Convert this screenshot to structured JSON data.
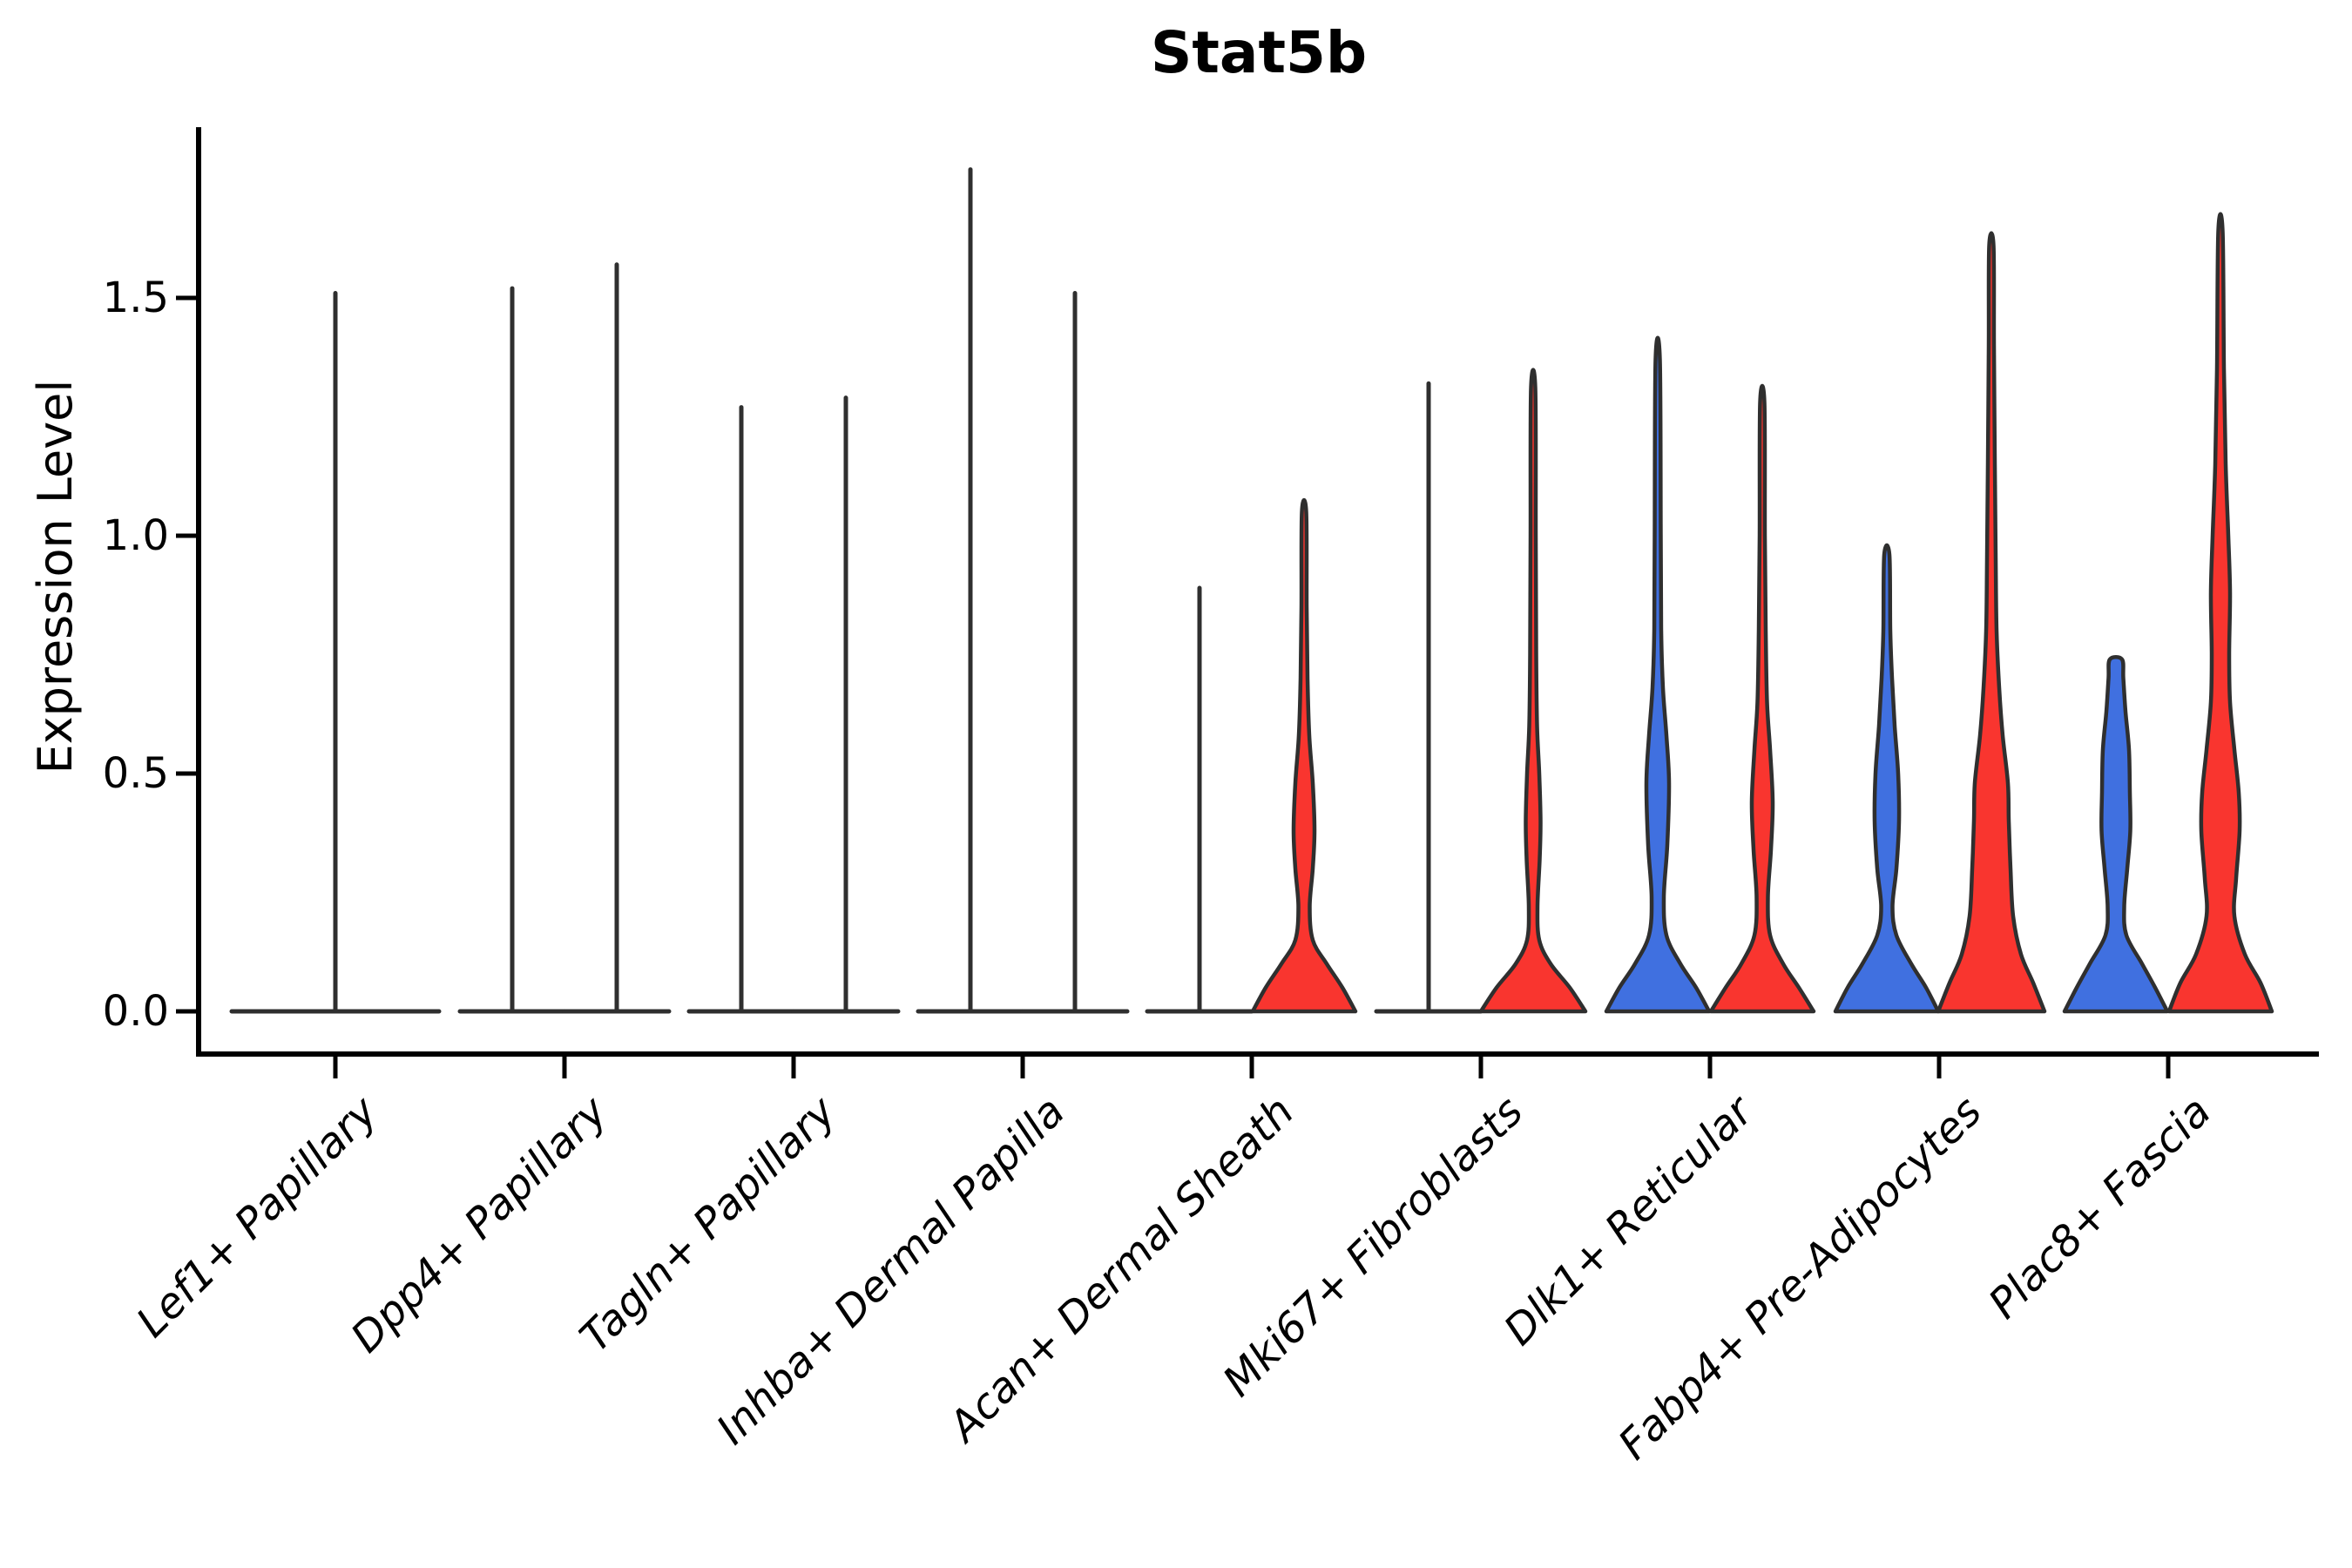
{
  "chart_data": {
    "type": "violin",
    "title": "Stat5b",
    "xlabel": "",
    "ylabel": "Expression Level",
    "ylim": [
      0,
      1.8
    ],
    "ytick_labels": [
      "0.0",
      "0.5",
      "1.0",
      "1.5"
    ],
    "ytick_values": [
      0.0,
      0.5,
      1.0,
      1.5
    ],
    "grid": false,
    "legend_position": "none",
    "colors": {
      "group_left_fill": "#4070E0",
      "group_right_fill": "#F9352F",
      "violin_outline": "#2F2F2F",
      "axis": "#000000",
      "background": "#FFFFFF"
    },
    "categories": [
      {
        "label": "Lef1+ Papillary",
        "violins": [
          {
            "group": "all",
            "style": "line",
            "fill": null,
            "max": 1.51,
            "offset": 0,
            "base_halfwidth": 119
          }
        ]
      },
      {
        "label": "Dpp4+ Papillary",
        "violins": [
          {
            "group": "left",
            "style": "line",
            "fill": null,
            "max": 1.52,
            "offset": -60,
            "base_halfwidth": 60
          },
          {
            "group": "right",
            "style": "line",
            "fill": null,
            "max": 1.57,
            "offset": 60,
            "base_halfwidth": 60
          }
        ]
      },
      {
        "label": "Tagln+ Papillary",
        "violins": [
          {
            "group": "left",
            "style": "line",
            "fill": null,
            "max": 1.27,
            "offset": -60,
            "base_halfwidth": 60
          },
          {
            "group": "right",
            "style": "line",
            "fill": null,
            "max": 1.29,
            "offset": 60,
            "base_halfwidth": 60
          }
        ]
      },
      {
        "label": "Inhba+ Dermal Papilla",
        "violins": [
          {
            "group": "left",
            "style": "line",
            "fill": null,
            "max": 1.77,
            "offset": -60,
            "base_halfwidth": 60
          },
          {
            "group": "right",
            "style": "line",
            "fill": null,
            "max": 1.51,
            "offset": 60,
            "base_halfwidth": 60
          }
        ]
      },
      {
        "label": "Acan+ Dermal Sheath",
        "violins": [
          {
            "group": "left",
            "style": "line",
            "fill": null,
            "max": 0.89,
            "offset": -60,
            "base_halfwidth": 60
          },
          {
            "group": "right",
            "style": "violin",
            "fill": "#F9352F",
            "max": 1.05,
            "offset": 60,
            "profile": [
              [
                0,
                59
              ],
              [
                0.05,
                44
              ],
              [
                0.1,
                26
              ],
              [
                0.15,
                10
              ],
              [
                0.22,
                6.5
              ],
              [
                0.3,
                10
              ],
              [
                0.38,
                12
              ],
              [
                0.48,
                10
              ],
              [
                0.58,
                6
              ],
              [
                0.7,
                4
              ],
              [
                0.85,
                3
              ],
              [
                1.05,
                2.5
              ]
            ]
          }
        ]
      },
      {
        "label": "Mki67+ Fibroblasts",
        "violins": [
          {
            "group": "left",
            "style": "line",
            "fill": null,
            "max": 1.32,
            "offset": -60,
            "base_halfwidth": 60
          },
          {
            "group": "right",
            "style": "violin",
            "fill": "#F9352F",
            "max": 1.31,
            "offset": 60,
            "profile": [
              [
                0,
                60
              ],
              [
                0.05,
                42
              ],
              [
                0.1,
                20
              ],
              [
                0.15,
                7
              ],
              [
                0.22,
                5
              ],
              [
                0.32,
                7.5
              ],
              [
                0.4,
                8.5
              ],
              [
                0.5,
                7
              ],
              [
                0.6,
                4.5
              ],
              [
                0.75,
                3.5
              ],
              [
                1.0,
                3
              ],
              [
                1.31,
                2.5
              ]
            ]
          }
        ]
      },
      {
        "label": "Dlk1+ Reticular",
        "violins": [
          {
            "group": "left",
            "style": "violin",
            "fill": "#4070E0",
            "max": 1.37,
            "offset": -60,
            "profile": [
              [
                0,
                59
              ],
              [
                0.05,
                44
              ],
              [
                0.1,
                26
              ],
              [
                0.16,
                10
              ],
              [
                0.24,
                7
              ],
              [
                0.35,
                11
              ],
              [
                0.48,
                13
              ],
              [
                0.58,
                10
              ],
              [
                0.68,
                6
              ],
              [
                0.8,
                4
              ],
              [
                1.0,
                3.5
              ],
              [
                1.37,
                2.5
              ]
            ]
          },
          {
            "group": "right",
            "style": "violin",
            "fill": "#F9352F",
            "max": 1.28,
            "offset": 60,
            "profile": [
              [
                0,
                59
              ],
              [
                0.05,
                42
              ],
              [
                0.1,
                24
              ],
              [
                0.16,
                9
              ],
              [
                0.24,
                6.5
              ],
              [
                0.34,
                10
              ],
              [
                0.44,
                12
              ],
              [
                0.55,
                9
              ],
              [
                0.65,
                5.5
              ],
              [
                0.8,
                4
              ],
              [
                1.0,
                3
              ],
              [
                1.28,
                2.5
              ]
            ]
          }
        ]
      },
      {
        "label": "Fabp4+ Pre-Adipocytes",
        "violins": [
          {
            "group": "left",
            "style": "violin",
            "fill": "#4070E0",
            "max": 0.96,
            "offset": -60,
            "profile": [
              [
                0,
                59
              ],
              [
                0.05,
                45
              ],
              [
                0.1,
                28
              ],
              [
                0.16,
                11
              ],
              [
                0.22,
                6.5
              ],
              [
                0.3,
                11
              ],
              [
                0.4,
                14
              ],
              [
                0.5,
                13
              ],
              [
                0.6,
                9
              ],
              [
                0.7,
                6
              ],
              [
                0.8,
                4
              ],
              [
                0.96,
                3
              ]
            ]
          },
          {
            "group": "right",
            "style": "violin",
            "fill": "#F9352F",
            "max": 1.61,
            "offset": 60,
            "profile": [
              [
                0,
                61
              ],
              [
                0.06,
                48
              ],
              [
                0.12,
                34
              ],
              [
                0.2,
                25
              ],
              [
                0.3,
                22
              ],
              [
                0.4,
                20
              ],
              [
                0.48,
                19
              ],
              [
                0.58,
                13
              ],
              [
                0.68,
                9
              ],
              [
                0.8,
                6
              ],
              [
                0.95,
                5
              ],
              [
                1.15,
                4
              ],
              [
                1.4,
                3
              ],
              [
                1.61,
                2.5
              ]
            ]
          }
        ]
      },
      {
        "label": "Plac8+ Fascia",
        "violins": [
          {
            "group": "left",
            "style": "violin",
            "fill": "#4070E0",
            "max": 0.74,
            "offset": -60,
            "flat_top": true,
            "profile": [
              [
                0,
                59
              ],
              [
                0.05,
                45
              ],
              [
                0.1,
                30
              ],
              [
                0.16,
                12
              ],
              [
                0.22,
                9.5
              ],
              [
                0.3,
                13
              ],
              [
                0.38,
                16.5
              ],
              [
                0.46,
                16
              ],
              [
                0.55,
                15
              ],
              [
                0.63,
                11
              ],
              [
                0.7,
                8.5
              ],
              [
                0.74,
                7
              ]
            ]
          },
          {
            "group": "right",
            "style": "violin",
            "fill": "#F9352F",
            "max": 1.64,
            "offset": 60,
            "profile": [
              [
                0,
                59
              ],
              [
                0.06,
                46
              ],
              [
                0.12,
                28
              ],
              [
                0.2,
                16
              ],
              [
                0.28,
                18
              ],
              [
                0.38,
                22
              ],
              [
                0.46,
                21
              ],
              [
                0.55,
                16
              ],
              [
                0.65,
                11
              ],
              [
                0.75,
                10
              ],
              [
                0.88,
                11
              ],
              [
                1.0,
                9
              ],
              [
                1.15,
                6
              ],
              [
                1.35,
                4
              ],
              [
                1.64,
                2.5
              ]
            ]
          }
        ]
      }
    ]
  }
}
